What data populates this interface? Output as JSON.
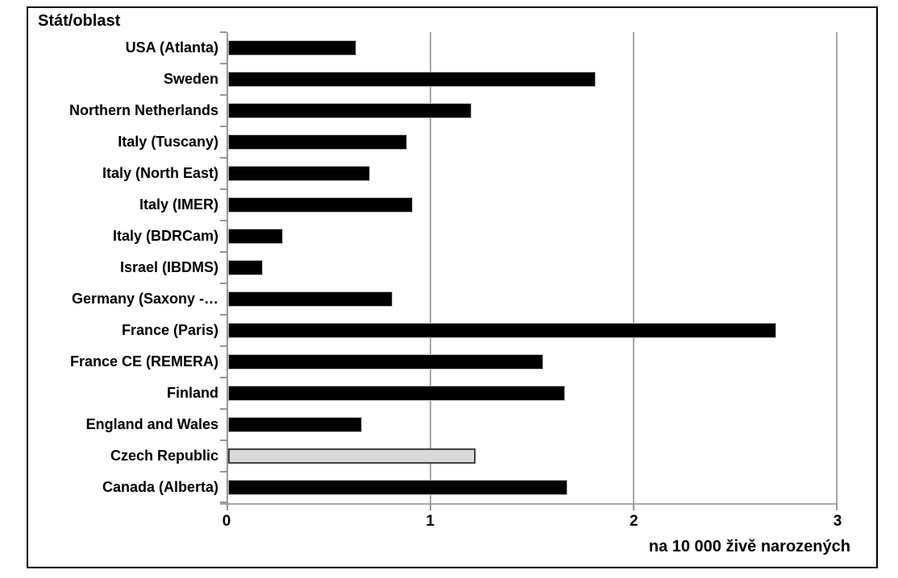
{
  "chart_data": {
    "type": "bar",
    "orientation": "horizontal",
    "title": "Stát/oblast",
    "xlabel": "na 10 000 živě narozených",
    "ylabel": "",
    "xlim": [
      0,
      3
    ],
    "xticks": [
      0,
      1,
      2,
      3
    ],
    "grid": true,
    "legend": "none",
    "categories": [
      "USA (Atlanta)",
      "Sweden",
      "Northern Netherlands",
      "Italy (Tuscany)",
      "Italy (North East)",
      "Italy (IMER)",
      "Italy (BDRCam)",
      "Israel (IBDMS)",
      "Germany (Saxony -…",
      "France (Paris)",
      "France CE (REMERA)",
      "Finland",
      "England and Wales",
      "Czech Republic",
      "Canada (Alberta)"
    ],
    "values": [
      0.63,
      1.81,
      1.2,
      0.88,
      0.7,
      0.91,
      0.27,
      0.17,
      0.81,
      2.7,
      1.55,
      1.66,
      0.66,
      1.22,
      1.67
    ],
    "colors": {
      "bar_fill": "#000000",
      "bar_outline": "#bfbfbf",
      "highlight_fill": "#d9d9d9",
      "highlight_border": "#404040",
      "gridline": "#a6a6a6",
      "axis": "#969696",
      "frame_border": "#000000",
      "text": "#000000"
    },
    "highlight_category": "Czech Republic"
  }
}
